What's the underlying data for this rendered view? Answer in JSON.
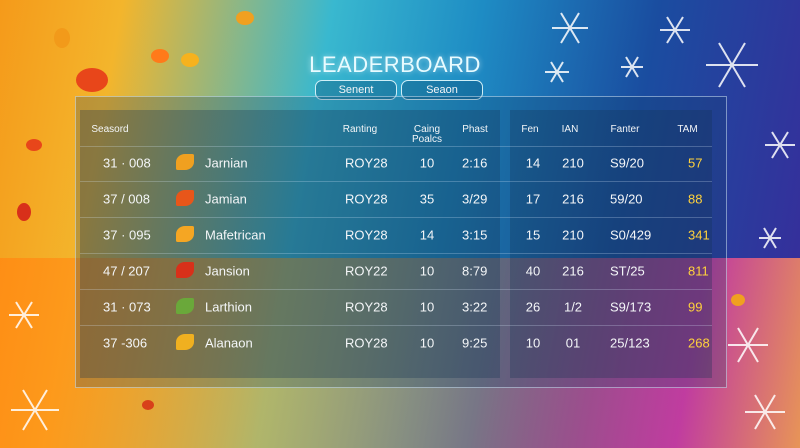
{
  "title": "LEADERBOARD",
  "tabs": [
    "Senent",
    "Seaon"
  ],
  "table": {
    "left_headers": [
      "Seasord",
      "Ranting",
      "Caing Poalcs",
      "Phast"
    ],
    "right_headers": [
      "Fen",
      "IAN",
      "Fanter",
      "TAM"
    ],
    "rows": [
      [
        "31 · 008",
        "Jarnian",
        "ROY28",
        "10",
        "2:16",
        "14",
        "210",
        "S9/20",
        "57"
      ],
      [
        "37 / 008",
        "Jamian",
        "ROY28",
        "35",
        "3/29",
        "17",
        "216",
        "59/20",
        "88"
      ],
      [
        "37 · 095",
        "Mafetrican",
        "ROY28",
        "14",
        "3:15",
        "15",
        "210",
        "S0/429",
        "341"
      ],
      [
        "47 / 207",
        "Jansion",
        "ROY22",
        "10",
        "8:79",
        "40",
        "216",
        "ST/25",
        "811"
      ],
      [
        "31 · 073",
        "Larthion",
        "ROY28",
        "10",
        "3:22",
        "26",
        "1/2",
        "S9/173",
        "99"
      ],
      [
        "37 -306",
        "Alanaon",
        "ROY28",
        "10",
        "9:25",
        "10",
        "01",
        "25/123",
        "268"
      ]
    ]
  }
}
